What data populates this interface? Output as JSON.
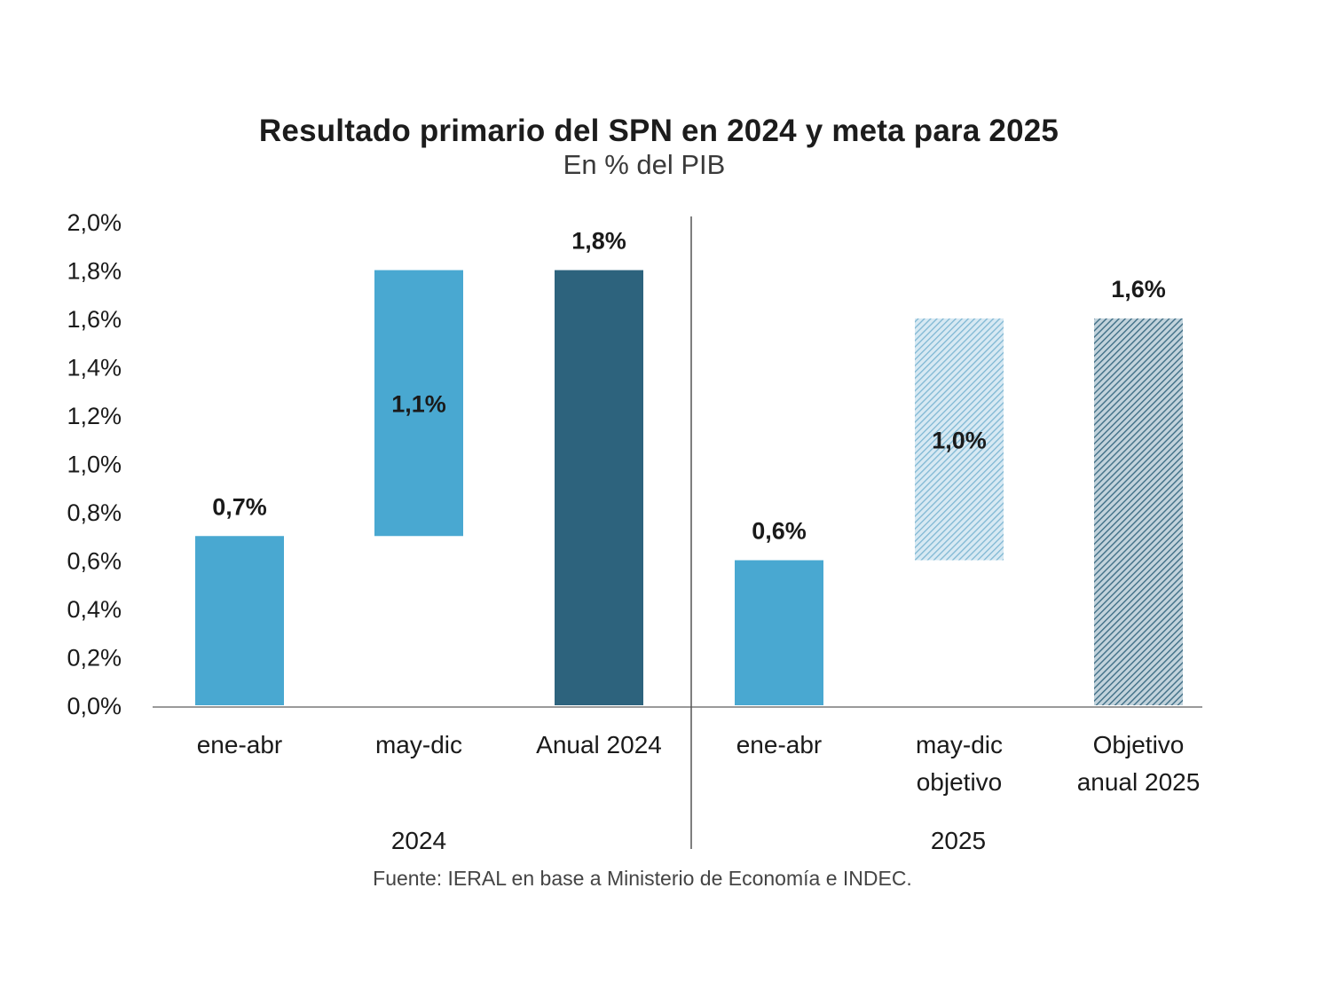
{
  "title": "Resultado primario del SPN en 2024 y meta para 2025",
  "subtitle": "En % del PIB",
  "source": "Fuente: IERAL en base a Ministerio de Economía e INDEC.",
  "chart_data": {
    "type": "bar",
    "variant": "waterfall",
    "title": "Resultado primario del SPN en 2024 y meta para 2025",
    "subtitle": "En % del PIB",
    "ylim": [
      0,
      2.0
    ],
    "yticks": [
      "0,0%",
      "0,2%",
      "0,4%",
      "0,6%",
      "0,8%",
      "1,0%",
      "1,2%",
      "1,4%",
      "1,6%",
      "1,8%",
      "2,0%"
    ],
    "grid": false,
    "groups": [
      {
        "name": "2024",
        "bars": [
          {
            "category": "ene-abr",
            "base": 0.0,
            "value": 0.7,
            "label": "0,7%",
            "style": "solid-light",
            "color": "#49a8d1"
          },
          {
            "category": "may-dic",
            "base": 0.7,
            "value": 1.1,
            "label": "1,1%",
            "style": "solid-light",
            "color": "#49a8d1"
          },
          {
            "category": "Anual 2024",
            "base": 0.0,
            "value": 1.8,
            "label": "1,8%",
            "style": "solid-dark",
            "color": "#2d637d"
          }
        ]
      },
      {
        "name": "2025",
        "bars": [
          {
            "category": "ene-abr",
            "base": 0.0,
            "value": 0.6,
            "label": "0,6%",
            "style": "solid-light",
            "color": "#49a8d1"
          },
          {
            "category": "may-dic objetivo",
            "base": 0.6,
            "value": 1.0,
            "label": "1,0%",
            "style": "hatched-light",
            "color": "#a9cfe2"
          },
          {
            "category": "Objetivo anual 2025",
            "base": 0.0,
            "value": 1.6,
            "label": "1,6%",
            "style": "hatched-dark",
            "color": "#6f95a8"
          }
        ]
      }
    ]
  }
}
